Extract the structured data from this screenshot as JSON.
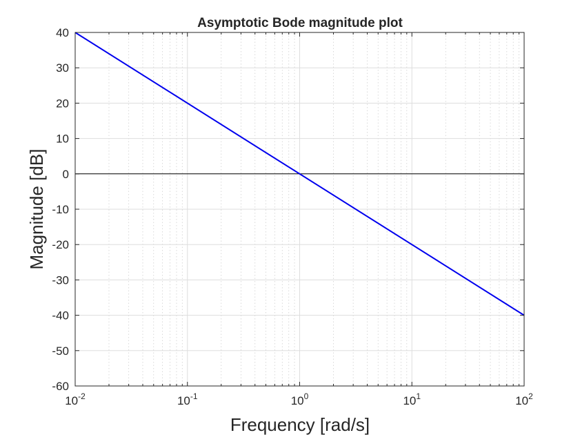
{
  "chart_data": {
    "type": "line",
    "title": "Asymptotic Bode magnitude plot",
    "xlabel": "Frequency [rad/s]",
    "ylabel": "Magnitude [dB]",
    "x_scale": "log",
    "xlim": [
      0.01,
      100
    ],
    "ylim": [
      -60,
      40
    ],
    "x_ticks": [
      0.01,
      0.1,
      1,
      10,
      100
    ],
    "x_tick_labels": [
      {
        "base": "10",
        "exp": "-2"
      },
      {
        "base": "10",
        "exp": "-1"
      },
      {
        "base": "10",
        "exp": "0"
      },
      {
        "base": "10",
        "exp": "1"
      },
      {
        "base": "10",
        "exp": "2"
      }
    ],
    "y_ticks": [
      40,
      30,
      20,
      10,
      0,
      -10,
      -20,
      -30,
      -40,
      -50,
      -60
    ],
    "y_tick_labels": [
      "40",
      "30",
      "20",
      "10",
      "0",
      "-10",
      "-20",
      "-30",
      "-40",
      "-50",
      "-60"
    ],
    "grid": true,
    "minor_grid": true,
    "reference_line": {
      "y": 0,
      "color": "#000000"
    },
    "series": [
      {
        "x": [
          0.01,
          100
        ],
        "y": [
          40,
          -40
        ],
        "color": "#0000ee"
      }
    ]
  }
}
